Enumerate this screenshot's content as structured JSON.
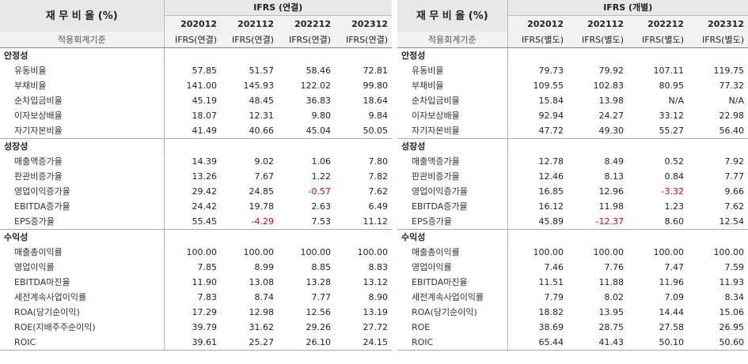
{
  "left": {
    "title": "재 무 비 율 (%)",
    "group_header": "IFRS (연결)",
    "standard_label": "적용회계기준",
    "years": [
      "202012",
      "202112",
      "202212",
      "202312"
    ],
    "standards": [
      "IFRS(연결)",
      "IFRS(연결)",
      "IFRS(연결)",
      "IFRS(연결)"
    ],
    "sections": [
      {
        "name": "안정성",
        "rows": [
          {
            "label": "유동비율",
            "values": [
              "57.85",
              "51.57",
              "58.46",
              "72.81"
            ]
          },
          {
            "label": "부채비율",
            "values": [
              "141.00",
              "145.93",
              "122.02",
              "99.80"
            ]
          },
          {
            "label": "순차입금비율",
            "values": [
              "45.19",
              "48.45",
              "36.83",
              "18.64"
            ]
          },
          {
            "label": "이자보상배율",
            "values": [
              "18.07",
              "12.31",
              "9.80",
              "9.84"
            ]
          },
          {
            "label": "자기자본비율",
            "values": [
              "41.49",
              "40.66",
              "45.04",
              "50.05"
            ]
          }
        ]
      },
      {
        "name": "성장성",
        "rows": [
          {
            "label": "매출액증가율",
            "values": [
              "14.39",
              "9.02",
              "1.06",
              "7.80"
            ]
          },
          {
            "label": "판관비증가율",
            "values": [
              "13.26",
              "7.67",
              "1.22",
              "7.82"
            ]
          },
          {
            "label": "영업이익증가율",
            "values": [
              "29.42",
              "24.85",
              "-0.57",
              "7.62"
            ]
          },
          {
            "label": "EBITDA증가율",
            "values": [
              "24.42",
              "19.78",
              "2.63",
              "6.49"
            ]
          },
          {
            "label": "EPS증가율",
            "values": [
              "55.45",
              "-4.29",
              "7.53",
              "11.12"
            ]
          }
        ]
      },
      {
        "name": "수익성",
        "rows": [
          {
            "label": "매출총이익률",
            "values": [
              "100.00",
              "100.00",
              "100.00",
              "100.00"
            ]
          },
          {
            "label": "영업이익률",
            "values": [
              "7.85",
              "8.99",
              "8.85",
              "8.83"
            ]
          },
          {
            "label": "EBITDA마진율",
            "values": [
              "11.90",
              "13.08",
              "13.28",
              "13.12"
            ]
          },
          {
            "label": "세전계속사업이익률",
            "values": [
              "7.83",
              "8.74",
              "7.77",
              "8.90"
            ]
          },
          {
            "label": "ROA(당기순이익)",
            "values": [
              "17.29",
              "12.98",
              "12.56",
              "13.19"
            ]
          },
          {
            "label": "ROE(지배주주순이익)",
            "values": [
              "39.79",
              "31.62",
              "29.26",
              "27.72"
            ]
          },
          {
            "label": "ROIC",
            "values": [
              "39.61",
              "25.27",
              "26.10",
              "24.15"
            ]
          }
        ]
      }
    ]
  },
  "right": {
    "title": "재 무 비 율 (%)",
    "group_header": "IFRS (개별)",
    "standard_label": "적용회계기준",
    "years": [
      "202012",
      "202112",
      "202212",
      "202312"
    ],
    "standards": [
      "IFRS(별도)",
      "IFRS(별도)",
      "IFRS(별도)",
      "IFRS(별도)"
    ],
    "sections": [
      {
        "name": "안정성",
        "rows": [
          {
            "label": "유동비율",
            "values": [
              "79.73",
              "79.92",
              "107.11",
              "119.75"
            ]
          },
          {
            "label": "부채비율",
            "values": [
              "109.55",
              "102.83",
              "80.95",
              "77.32"
            ]
          },
          {
            "label": "순차입금비율",
            "values": [
              "15.84",
              "13.98",
              "N/A",
              "N/A"
            ]
          },
          {
            "label": "이자보상배율",
            "values": [
              "92.94",
              "24.27",
              "33.12",
              "22.98"
            ]
          },
          {
            "label": "자기자본비율",
            "values": [
              "47.72",
              "49.30",
              "55.27",
              "56.40"
            ]
          }
        ]
      },
      {
        "name": "성장성",
        "rows": [
          {
            "label": "매출액증가율",
            "values": [
              "12.78",
              "8.49",
              "0.52",
              "7.92"
            ]
          },
          {
            "label": "판관비증가율",
            "values": [
              "12.46",
              "8.13",
              "0.84",
              "7.77"
            ]
          },
          {
            "label": "영업이익증가율",
            "values": [
              "16.85",
              "12.96",
              "-3.32",
              "9.66"
            ]
          },
          {
            "label": "EBITDA증가율",
            "values": [
              "16.12",
              "11.98",
              "1.23",
              "7.62"
            ]
          },
          {
            "label": "EPS증가율",
            "values": [
              "45.89",
              "-12.37",
              "8.60",
              "12.54"
            ]
          }
        ]
      },
      {
        "name": "수익성",
        "rows": [
          {
            "label": "매출총이익률",
            "values": [
              "100.00",
              "100.00",
              "100.00",
              "100.00"
            ]
          },
          {
            "label": "영업이익률",
            "values": [
              "7.46",
              "7.76",
              "7.47",
              "7.59"
            ]
          },
          {
            "label": "EBITDA마진율",
            "values": [
              "11.51",
              "11.88",
              "11.96",
              "11.93"
            ]
          },
          {
            "label": "세전계속사업이익률",
            "values": [
              "7.79",
              "8.02",
              "7.09",
              "8.34"
            ]
          },
          {
            "label": "ROA(당기순이익)",
            "values": [
              "18.82",
              "13.95",
              "14.44",
              "15.06"
            ]
          },
          {
            "label": "ROE",
            "values": [
              "38.69",
              "28.75",
              "27.58",
              "26.95"
            ]
          },
          {
            "label": "ROIC",
            "values": [
              "65.44",
              "41.43",
              "50.10",
              "50.60"
            ]
          }
        ]
      }
    ]
  }
}
